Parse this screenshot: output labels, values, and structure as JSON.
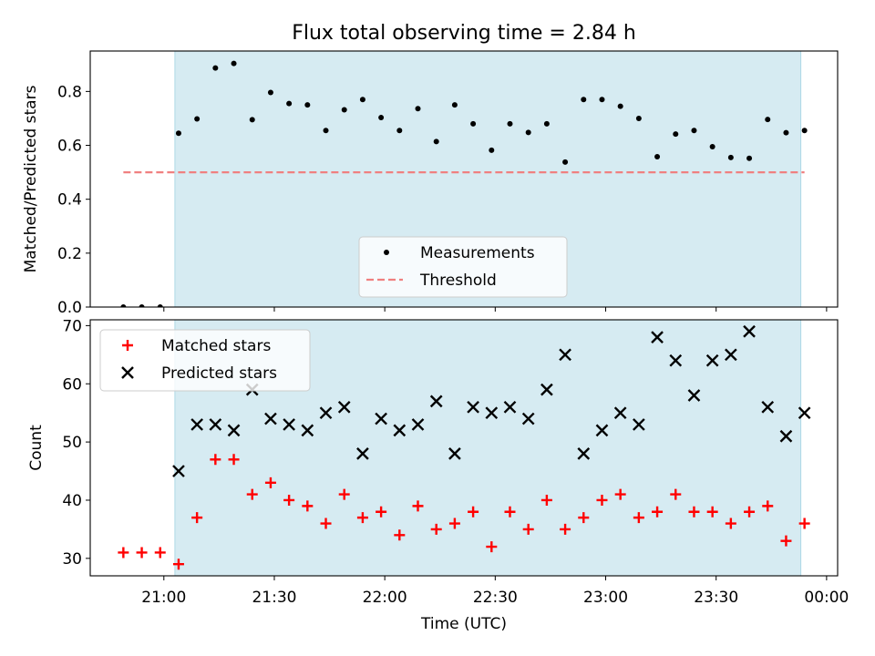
{
  "figure": {
    "title": "Flux total observing time = 2.84 h"
  },
  "chart_data": [
    {
      "type": "scatter",
      "panel": "top",
      "ylabel": "Matched/Predicted stars",
      "xlabel": "",
      "ylim": [
        0,
        0.95
      ],
      "yticks": [
        "0.0",
        "0.2",
        "0.4",
        "0.6",
        "0.8"
      ],
      "ytick_values": [
        0,
        0.2,
        0.4,
        0.6,
        0.8
      ],
      "legend": {
        "placement": "lower-center",
        "entries": [
          "Measurements",
          "Threshold"
        ]
      },
      "shaded_span": {
        "from": "21:03",
        "to": "23:53",
        "color": "#add8e6"
      },
      "series": [
        {
          "name": "Measurements",
          "marker": "dot",
          "color": "#000000",
          "x": [
            "20:49",
            "20:54",
            "20:59",
            "21:04",
            "21:09",
            "21:14",
            "21:19",
            "21:24",
            "21:29",
            "21:34",
            "21:39",
            "21:44",
            "21:49",
            "21:54",
            "21:59",
            "22:04",
            "22:09",
            "22:14",
            "22:19",
            "22:24",
            "22:29",
            "22:34",
            "22:39",
            "22:44",
            "22:49",
            "22:54",
            "22:59",
            "23:04",
            "23:09",
            "23:14",
            "23:19",
            "23:24",
            "23:29",
            "23:34",
            "23:39",
            "23:44",
            "23:49",
            "23:54"
          ],
          "y": [
            0.0,
            0.0,
            0.0,
            0.645,
            0.698,
            0.887,
            0.904,
            0.695,
            0.796,
            0.755,
            0.75,
            0.655,
            0.732,
            0.77,
            0.703,
            0.655,
            0.736,
            0.614,
            0.75,
            0.68,
            0.582,
            0.68,
            0.648,
            0.68,
            0.538,
            0.77,
            0.77,
            0.745,
            0.7,
            0.558,
            0.642,
            0.655,
            0.595,
            0.555,
            0.552,
            0.696,
            0.647,
            0.655
          ]
        },
        {
          "name": "Threshold",
          "marker": "dashed-line",
          "color": "#f08080",
          "x": [
            "20:49",
            "23:54"
          ],
          "y": [
            0.5,
            0.5
          ]
        }
      ]
    },
    {
      "type": "scatter",
      "panel": "bottom",
      "ylabel": "Count",
      "xlabel": "Time (UTC)",
      "ylim": [
        27,
        71
      ],
      "yticks": [
        "30",
        "40",
        "50",
        "60",
        "70"
      ],
      "ytick_values": [
        30,
        40,
        50,
        60,
        70
      ],
      "xlim": [
        "20:40",
        "00:03"
      ],
      "xticks": [
        "21:00",
        "21:30",
        "22:00",
        "22:30",
        "23:00",
        "23:30",
        "00:00"
      ],
      "legend": {
        "placement": "upper-left",
        "entries": [
          "Matched stars",
          "Predicted stars"
        ]
      },
      "shaded_span": {
        "from": "21:03",
        "to": "23:53",
        "color": "#add8e6"
      },
      "series": [
        {
          "name": "Matched stars",
          "marker": "plus",
          "color": "#ff0000",
          "x": [
            "20:49",
            "20:54",
            "20:59",
            "21:04",
            "21:09",
            "21:14",
            "21:19",
            "21:24",
            "21:29",
            "21:34",
            "21:39",
            "21:44",
            "21:49",
            "21:54",
            "21:59",
            "22:04",
            "22:09",
            "22:14",
            "22:19",
            "22:24",
            "22:29",
            "22:34",
            "22:39",
            "22:44",
            "22:49",
            "22:54",
            "22:59",
            "23:04",
            "23:09",
            "23:14",
            "23:19",
            "23:24",
            "23:29",
            "23:34",
            "23:39",
            "23:44",
            "23:49",
            "23:54"
          ],
          "y": [
            31,
            31,
            31,
            29,
            37,
            47,
            47,
            41,
            43,
            40,
            39,
            36,
            41,
            37,
            38,
            34,
            39,
            35,
            36,
            38,
            32,
            38,
            35,
            40,
            35,
            37,
            40,
            41,
            37,
            38,
            41,
            38,
            38,
            36,
            38,
            39,
            33,
            36
          ]
        },
        {
          "name": "Predicted stars",
          "marker": "x",
          "color": "#000000",
          "x": [
            "21:04",
            "21:09",
            "21:14",
            "21:19",
            "21:24",
            "21:29",
            "21:34",
            "21:39",
            "21:44",
            "21:49",
            "21:54",
            "21:59",
            "22:04",
            "22:09",
            "22:14",
            "22:19",
            "22:24",
            "22:29",
            "22:34",
            "22:39",
            "22:44",
            "22:49",
            "22:54",
            "22:59",
            "23:04",
            "23:09",
            "23:14",
            "23:19",
            "23:24",
            "23:29",
            "23:34",
            "23:39",
            "23:44",
            "23:49",
            "23:54"
          ],
          "y": [
            45,
            53,
            53,
            52,
            59,
            54,
            53,
            52,
            55,
            56,
            48,
            54,
            52,
            53,
            57,
            48,
            56,
            55,
            56,
            54,
            59,
            65,
            48,
            52,
            55,
            53,
            68,
            64,
            58,
            64,
            65,
            69,
            56,
            51,
            55
          ]
        }
      ]
    }
  ]
}
